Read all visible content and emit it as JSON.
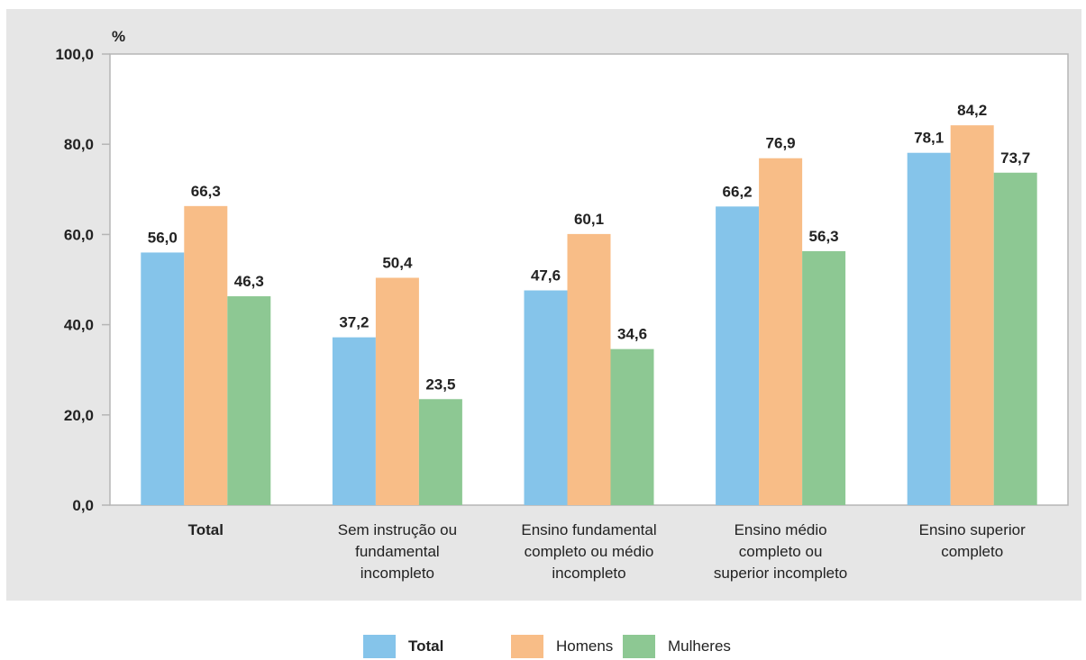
{
  "chart_data": {
    "type": "bar",
    "ylabel": "%",
    "ylim": [
      0,
      100
    ],
    "yticks": [
      "0,0",
      "20,0",
      "40,0",
      "60,0",
      "80,0",
      "100,0"
    ],
    "categories": [
      [
        "Total"
      ],
      [
        "Sem instrução ou",
        "fundamental",
        "incompleto"
      ],
      [
        "Ensino fundamental",
        "completo ou médio",
        "incompleto"
      ],
      [
        "Ensino médio",
        "completo ou",
        "superior incompleto"
      ],
      [
        "Ensino superior",
        "completo"
      ]
    ],
    "series": [
      {
        "name": "Total",
        "color": "#85c4ea",
        "values": [
          56.0,
          37.2,
          47.6,
          66.2,
          78.1
        ],
        "labels": [
          "56,0",
          "37,2",
          "47,6",
          "66,2",
          "78,1"
        ]
      },
      {
        "name": "Homens",
        "color": "#f8bd87",
        "values": [
          66.3,
          50.4,
          60.1,
          76.9,
          84.2
        ],
        "labels": [
          "66,3",
          "50,4",
          "60,1",
          "76,9",
          "84,2"
        ]
      },
      {
        "name": "Mulheres",
        "color": "#8dc893",
        "values": [
          46.3,
          23.5,
          34.6,
          56.3,
          73.7
        ],
        "labels": [
          "46,3",
          "23,5",
          "34,6",
          "56,3",
          "73,7"
        ]
      }
    ],
    "legend_position": "bottom-center",
    "grid": false
  }
}
